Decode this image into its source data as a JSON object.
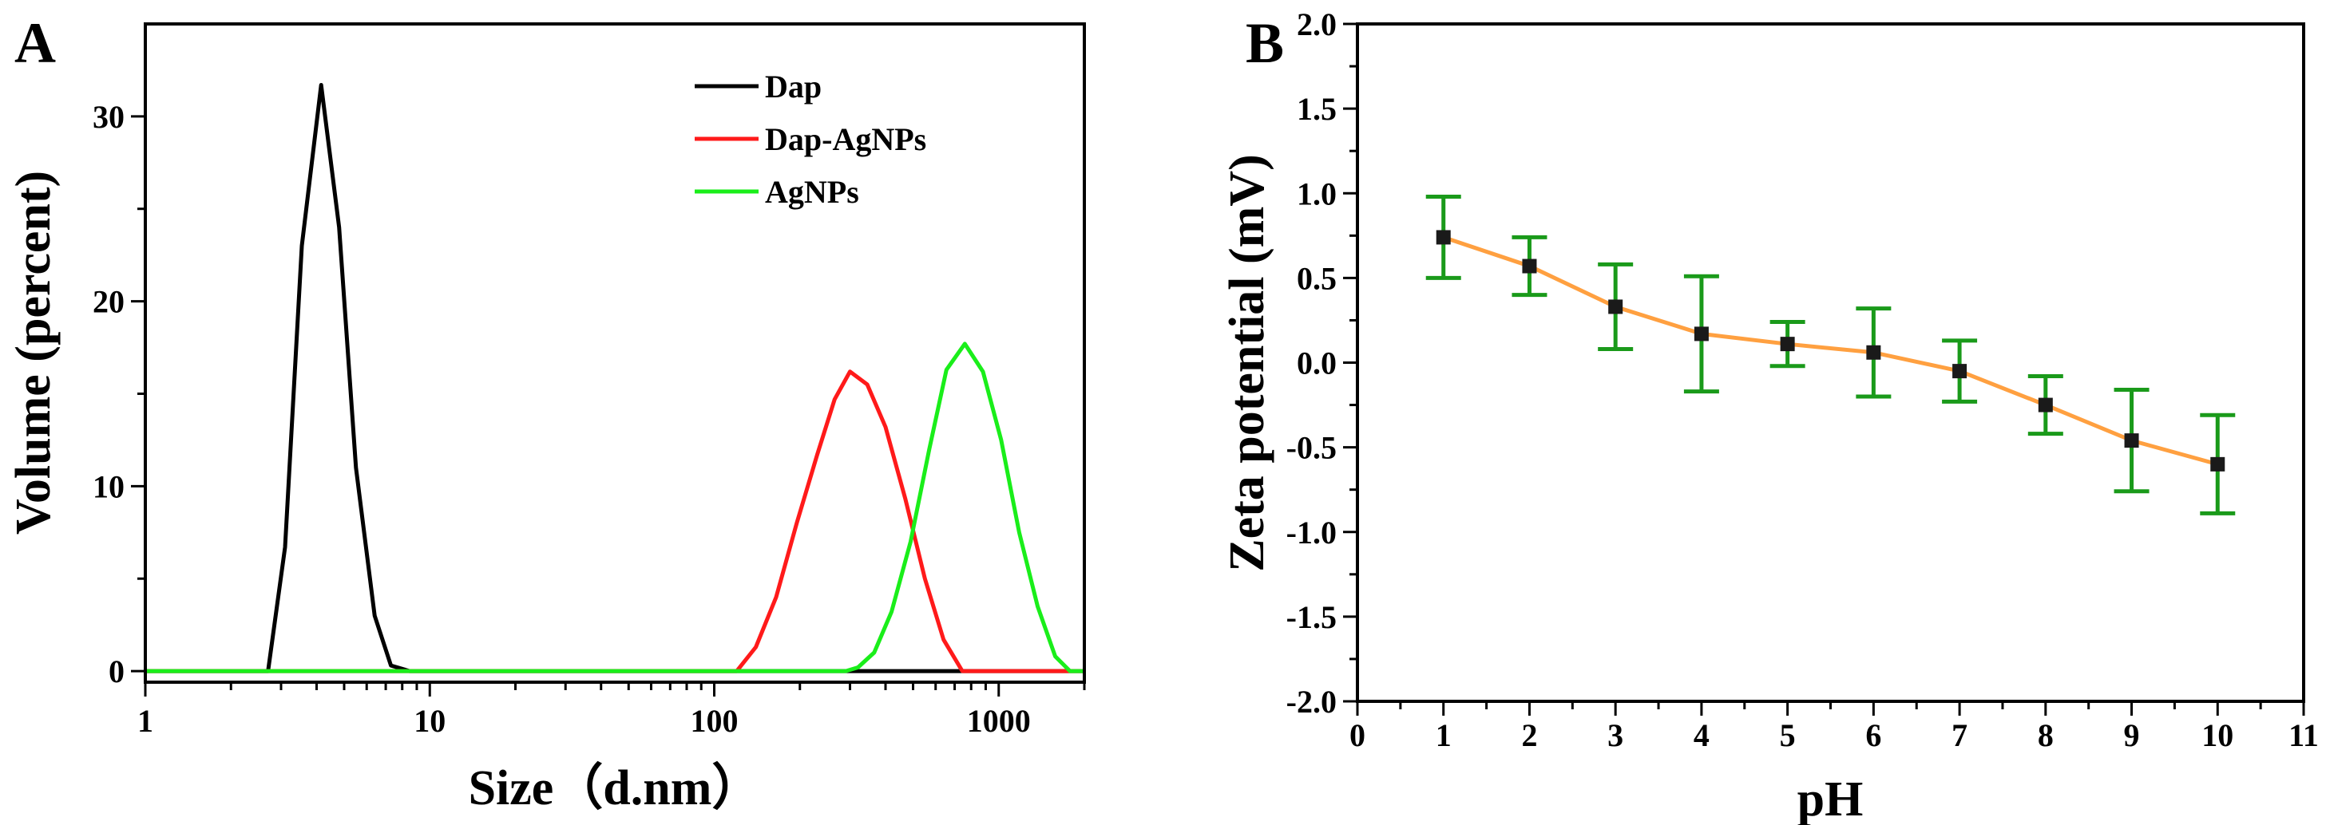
{
  "chart_data": [
    {
      "panel": "A",
      "type": "line",
      "xscale": "log",
      "title": "",
      "xlabel": "Size（d.nm）",
      "ylabel": "Volume (percent)",
      "xlim": [
        1,
        2000
      ],
      "ylim": [
        -0.6,
        35
      ],
      "xticks": [
        1,
        10,
        100,
        1000
      ],
      "xtick_labels": [
        "1",
        "10",
        "100",
        "1000"
      ],
      "yticks": [
        0,
        10,
        20,
        30
      ],
      "ytick_labels": [
        "0",
        "10",
        "20",
        "30"
      ],
      "legend_position": "top-right",
      "series": [
        {
          "name": "Dap",
          "color": "#000000",
          "x": [
            1,
            2.7,
            3.1,
            3.55,
            4.15,
            4.8,
            5.5,
            6.4,
            7.3,
            8.5,
            10,
            100,
            1000,
            2000
          ],
          "y": [
            0,
            0,
            6.7,
            23,
            31.7,
            24,
            11,
            3,
            0.3,
            0,
            0,
            0,
            0,
            0
          ]
        },
        {
          "name": "Dap-AgNPs",
          "color": "#ff1a1a",
          "x": [
            1,
            100,
            120,
            140,
            165,
            195,
            230,
            265,
            300,
            345,
            400,
            470,
            550,
            640,
            745,
            1000,
            2000
          ],
          "y": [
            0,
            0,
            0,
            1.3,
            4,
            8,
            11.7,
            14.7,
            16.2,
            15.5,
            13.2,
            9.3,
            5,
            1.7,
            0,
            0,
            0
          ]
        },
        {
          "name": "AgNPs",
          "color": "#1aee1a",
          "x": [
            1,
            100,
            290,
            320,
            365,
            420,
            490,
            570,
            655,
            760,
            880,
            1020,
            1180,
            1370,
            1580,
            1780,
            2000
          ],
          "y": [
            0,
            0,
            0,
            0.2,
            1,
            3.2,
            7,
            12,
            16.3,
            17.7,
            16.2,
            12.5,
            7.5,
            3.5,
            0.8,
            0,
            0
          ]
        }
      ]
    },
    {
      "panel": "B",
      "type": "line",
      "title": "",
      "xlabel": "pH",
      "ylabel": "Zeta potential (mV)",
      "xlim": [
        0,
        11
      ],
      "ylim": [
        -2.0,
        2.0
      ],
      "xticks": [
        0,
        1,
        2,
        3,
        4,
        5,
        6,
        7,
        8,
        9,
        10,
        11
      ],
      "xtick_labels": [
        "0",
        "1",
        "2",
        "3",
        "4",
        "5",
        "6",
        "7",
        "8",
        "9",
        "10",
        "11"
      ],
      "yticks": [
        -2.0,
        -1.5,
        -1.0,
        -0.5,
        0.0,
        0.5,
        1.0,
        1.5,
        2.0
      ],
      "ytick_labels": [
        "-2.0",
        "-1.5",
        "-1.0",
        "-0.5",
        "0.0",
        "0.5",
        "1.0",
        "1.5",
        "2.0"
      ],
      "line_color": "#ffa040",
      "marker_color": "#1a1a1a",
      "errorbar_color": "#1a9a1a",
      "series": [
        {
          "name": "Zeta potential",
          "x": [
            1,
            2,
            3,
            4,
            5,
            6,
            7,
            8,
            9,
            10
          ],
          "y": [
            0.74,
            0.57,
            0.33,
            0.17,
            0.11,
            0.06,
            -0.05,
            -0.25,
            -0.46,
            -0.6
          ],
          "err": [
            0.24,
            0.17,
            0.25,
            0.34,
            0.13,
            0.26,
            0.18,
            0.17,
            0.3,
            0.29
          ]
        }
      ]
    }
  ],
  "panels": {
    "a_letter": "A",
    "b_letter": "B"
  }
}
